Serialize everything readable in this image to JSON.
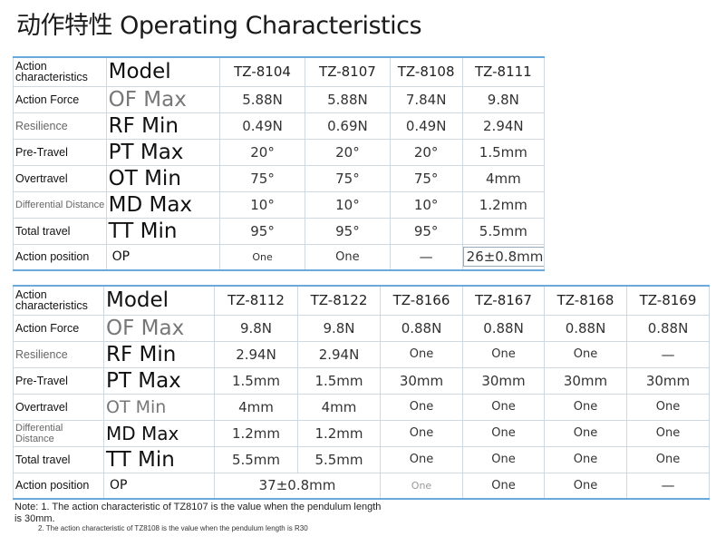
{
  "title": "动作特性 Operating Characteristics",
  "table1": {
    "rows": [
      {
        "label": "Action characteristics",
        "code": "Model",
        "values": [
          "TZ-8104",
          "TZ-8107",
          "TZ-8108",
          "TZ-8111"
        ]
      },
      {
        "label": "Action Force",
        "code": "OF Max",
        "values": [
          "5.88N",
          "5.88N",
          "7.84N",
          "9.8N"
        ]
      },
      {
        "label": "Resilience",
        "code": "RF Min",
        "values": [
          "0.49N",
          "0.69N",
          "0.49N",
          "2.94N"
        ]
      },
      {
        "label": "Pre-Travel",
        "code": "PT Max",
        "values": [
          "20°",
          "20°",
          "20°",
          "1.5mm"
        ]
      },
      {
        "label": "Overtravel",
        "code": "OT Min",
        "values": [
          "75°",
          "75°",
          "75°",
          "4mm"
        ]
      },
      {
        "label": "Differential Distance",
        "code": "MD Max",
        "values": [
          "10°",
          "10°",
          "10°",
          "1.2mm"
        ]
      },
      {
        "label": "Total travel",
        "code": "TT Min",
        "values": [
          "95°",
          "95°",
          "95°",
          "5.5mm"
        ]
      },
      {
        "label": "Action position",
        "code": "OP",
        "values": [
          "One",
          "One",
          "—",
          "26±0.8mm"
        ]
      }
    ]
  },
  "table2": {
    "rows": [
      {
        "label": "Action characteristics",
        "code": "Model",
        "values": [
          "TZ-8112",
          "TZ-8122",
          "TZ-8166",
          "TZ-8167",
          "TZ-8168",
          "TZ-8169"
        ]
      },
      {
        "label": "Action Force",
        "code": "OF Max",
        "values": [
          "9.8N",
          "9.8N",
          "0.88N",
          "0.88N",
          "0.88N",
          "0.88N"
        ]
      },
      {
        "label": "Resilience",
        "code": "RF Min",
        "values": [
          "2.94N",
          "2.94N",
          "One",
          "One",
          "One",
          "—"
        ]
      },
      {
        "label": "Pre-Travel",
        "code": "PT Max",
        "values": [
          "1.5mm",
          "1.5mm",
          "30mm",
          "30mm",
          "30mm",
          "30mm"
        ]
      },
      {
        "label": "Overtravel",
        "code": "OT Min",
        "values": [
          "4mm",
          "4mm",
          "One",
          "One",
          "One",
          "One"
        ]
      },
      {
        "label": "Differential Distance",
        "code": "MD Max",
        "values": [
          "1.2mm",
          "1.2mm",
          "One",
          "One",
          "One",
          "One"
        ]
      },
      {
        "label": "Total travel",
        "code": "TT Min",
        "values": [
          "5.5mm",
          "5.5mm",
          "One",
          "One",
          "One",
          "One"
        ]
      },
      {
        "label": "Action position",
        "code": "OP",
        "merged": "37±0.8mm",
        "values": [
          "One",
          "One",
          "One",
          "—"
        ]
      }
    ]
  },
  "notes": {
    "note1": "Note: 1. The action characteristic of TZ8107 is the value when the pendulum length is 30mm.",
    "note2": "2. The action characteristic of TZ8108 is the value when the pendulum length is R30"
  }
}
